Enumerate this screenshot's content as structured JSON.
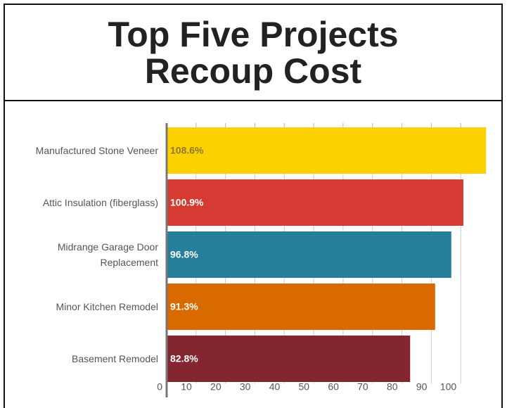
{
  "chart_data": {
    "type": "bar",
    "orientation": "horizontal",
    "title": "Top Five Projects Recoup Cost",
    "categories": [
      "Manufactured Stone Veneer",
      "Attic Insulation (fiberglass)",
      "Midrange Garage Door Replacement",
      "Minor Kitchen Remodel",
      "Basement Remodel"
    ],
    "values": [
      108.6,
      100.9,
      96.8,
      91.3,
      82.8
    ],
    "value_labels": [
      "108.6%",
      "100.9%",
      "96.8%",
      "91.3%",
      "82.8%"
    ],
    "colors": [
      "#fdd000",
      "#d63b33",
      "#267f9a",
      "#d96a00",
      "#83262f"
    ],
    "xlim": [
      0,
      110
    ],
    "xticks": [
      0,
      10,
      20,
      30,
      40,
      50,
      60,
      70,
      80,
      90,
      100
    ],
    "grid": true
  }
}
